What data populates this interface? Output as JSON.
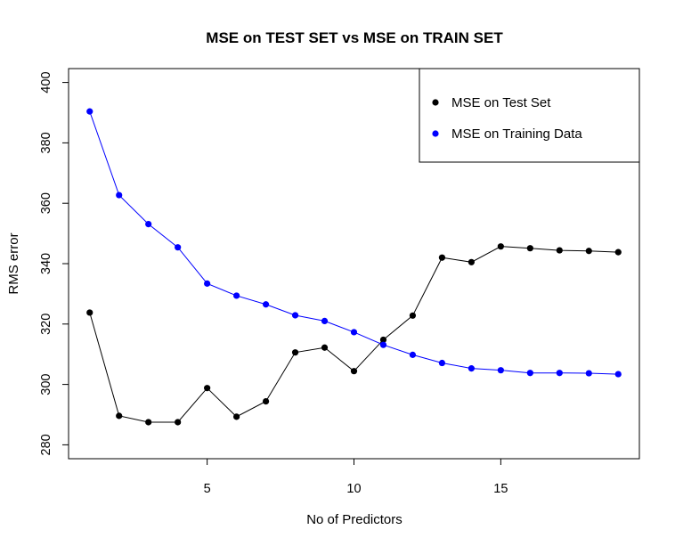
{
  "chart_data": {
    "type": "line",
    "title": "MSE on TEST SET vs MSE on TRAIN SET",
    "xlabel": "No of Predictors",
    "ylabel": "RMS error",
    "xlim": [
      0.28,
      19.72
    ],
    "ylim": [
      275.4,
      404.6
    ],
    "x_ticks": [
      5,
      10,
      15
    ],
    "y_ticks": [
      280,
      300,
      320,
      340,
      360,
      380,
      400
    ],
    "grid": false,
    "legend_position": "top-right",
    "x": [
      1,
      2,
      3,
      4,
      5,
      6,
      7,
      8,
      9,
      10,
      11,
      12,
      13,
      14,
      15,
      16,
      17,
      18,
      19
    ],
    "series": [
      {
        "name": "MSE on Test Set",
        "color": "#000000",
        "values": [
          323.8,
          289.6,
          287.5,
          287.5,
          298.8,
          289.3,
          294.4,
          310.6,
          312.2,
          304.4,
          314.8,
          322.8,
          342.0,
          340.5,
          345.7,
          345.1,
          344.4,
          344.2,
          343.8
        ]
      },
      {
        "name": "MSE on Training Data",
        "color": "#0000ff",
        "values": [
          390.4,
          362.7,
          353.1,
          345.4,
          333.4,
          329.4,
          326.5,
          322.9,
          321.0,
          317.3,
          313.1,
          309.8,
          307.1,
          305.3,
          304.7,
          303.8,
          303.8,
          303.7,
          303.4
        ]
      }
    ]
  }
}
